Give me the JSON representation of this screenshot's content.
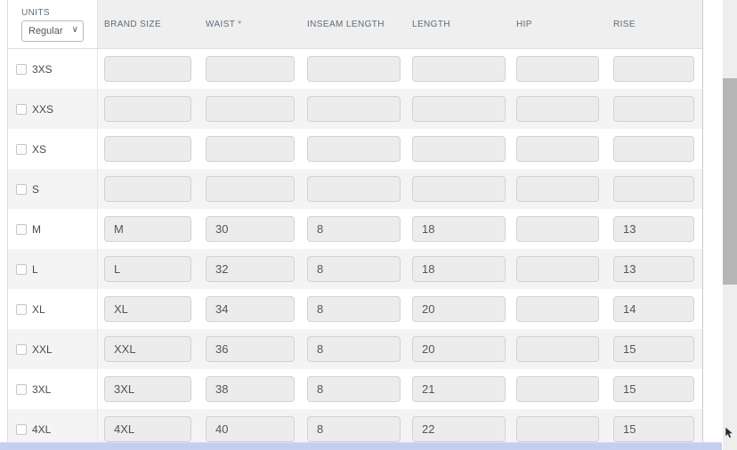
{
  "units_panel": {
    "label": "UNITS",
    "selected": "Regular",
    "options": [
      "Regular"
    ]
  },
  "table": {
    "columns": [
      {
        "key": "brand_size",
        "label": "BRAND SIZE",
        "required": false
      },
      {
        "key": "waist",
        "label": "WAIST",
        "required": true
      },
      {
        "key": "inseam_length",
        "label": "INSEAM LENGTH",
        "required": false
      },
      {
        "key": "length",
        "label": "LENGTH",
        "required": false
      },
      {
        "key": "hip",
        "label": "HIP",
        "required": false
      },
      {
        "key": "rise",
        "label": "RISE",
        "required": false
      }
    ],
    "required_marker": "*",
    "rows": [
      {
        "size": "3XS",
        "checked": false,
        "values": {
          "brand_size": "",
          "waist": "",
          "inseam_length": "",
          "length": "",
          "hip": "",
          "rise": ""
        }
      },
      {
        "size": "XXS",
        "checked": false,
        "values": {
          "brand_size": "",
          "waist": "",
          "inseam_length": "",
          "length": "",
          "hip": "",
          "rise": ""
        }
      },
      {
        "size": "XS",
        "checked": false,
        "values": {
          "brand_size": "",
          "waist": "",
          "inseam_length": "",
          "length": "",
          "hip": "",
          "rise": ""
        }
      },
      {
        "size": "S",
        "checked": false,
        "values": {
          "brand_size": "",
          "waist": "",
          "inseam_length": "",
          "length": "",
          "hip": "",
          "rise": ""
        }
      },
      {
        "size": "M",
        "checked": false,
        "values": {
          "brand_size": "M",
          "waist": "30",
          "inseam_length": "8",
          "length": "18",
          "hip": "",
          "rise": "13"
        }
      },
      {
        "size": "L",
        "checked": false,
        "values": {
          "brand_size": "L",
          "waist": "32",
          "inseam_length": "8",
          "length": "18",
          "hip": "",
          "rise": "13"
        }
      },
      {
        "size": "XL",
        "checked": false,
        "values": {
          "brand_size": "XL",
          "waist": "34",
          "inseam_length": "8",
          "length": "20",
          "hip": "",
          "rise": "14"
        }
      },
      {
        "size": "XXL",
        "checked": false,
        "values": {
          "brand_size": "XXL",
          "waist": "36",
          "inseam_length": "8",
          "length": "20",
          "hip": "",
          "rise": "15"
        }
      },
      {
        "size": "3XL",
        "checked": false,
        "values": {
          "brand_size": "3XL",
          "waist": "38",
          "inseam_length": "8",
          "length": "21",
          "hip": "",
          "rise": "15"
        }
      },
      {
        "size": "4XL",
        "checked": false,
        "values": {
          "brand_size": "4XL",
          "waist": "40",
          "inseam_length": "8",
          "length": "22",
          "hip": "",
          "rise": "15"
        }
      }
    ]
  }
}
